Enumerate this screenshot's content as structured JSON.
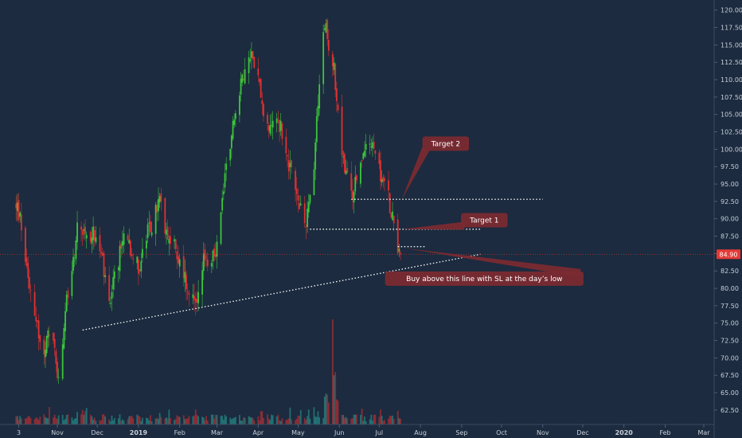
{
  "chart_data": {
    "type": "candlestick",
    "y_axis": {
      "range": [
        61,
        121
      ],
      "ticks": [
        "62.50",
        "65.00",
        "67.50",
        "70.00",
        "72.50",
        "75.00",
        "77.50",
        "80.00",
        "82.50",
        "85.00",
        "87.50",
        "90.00",
        "92.50",
        "95.00",
        "97.50",
        "100.00",
        "102.50",
        "105.00",
        "107.50",
        "110.00",
        "112.50",
        "115.00",
        "117.50",
        "120.00"
      ],
      "position": "right"
    },
    "x_axis": {
      "ticks": [
        {
          "label": "3",
          "date": "2018-10-03",
          "bold": false
        },
        {
          "label": "Nov",
          "date": "2018-11-01",
          "bold": false
        },
        {
          "label": "Dec",
          "date": "2018-12-01",
          "bold": false
        },
        {
          "label": "2019",
          "date": "2019-01-01",
          "bold": true
        },
        {
          "label": "Feb",
          "date": "2019-02-01",
          "bold": false
        },
        {
          "label": "Mar",
          "date": "2019-03-01",
          "bold": false
        },
        {
          "label": "Apr",
          "date": "2019-04-01",
          "bold": false
        },
        {
          "label": "May",
          "date": "2019-05-01",
          "bold": false
        },
        {
          "label": "Jun",
          "date": "2019-06-01",
          "bold": false
        },
        {
          "label": "Jul",
          "date": "2019-07-01",
          "bold": false
        },
        {
          "label": "Aug",
          "date": "2019-08-01",
          "bold": false
        },
        {
          "label": "Sep",
          "date": "2019-09-01",
          "bold": false
        },
        {
          "label": "Oct",
          "date": "2019-10-01",
          "bold": false
        },
        {
          "label": "Nov",
          "date": "2019-11-01",
          "bold": false
        },
        {
          "label": "Dec",
          "date": "2019-12-01",
          "bold": false
        },
        {
          "label": "2020",
          "date": "2020-01-01",
          "bold": true
        },
        {
          "label": "Feb",
          "date": "2020-02-01",
          "bold": false
        },
        {
          "label": "Mar",
          "date": "2020-03-01",
          "bold": false
        }
      ]
    },
    "last_price": {
      "label": "84.90",
      "value": 84.9
    },
    "price_path": [
      [
        "2018-10-01",
        92
      ],
      [
        "2018-10-04",
        90
      ],
      [
        "2018-10-07",
        86
      ],
      [
        "2018-10-10",
        82
      ],
      [
        "2018-10-13",
        79
      ],
      [
        "2018-10-16",
        76
      ],
      [
        "2018-10-19",
        72
      ],
      [
        "2018-10-22",
        70
      ],
      [
        "2018-10-25",
        73
      ],
      [
        "2018-10-28",
        75
      ],
      [
        "2018-10-31",
        69
      ],
      [
        "2018-11-02",
        66
      ],
      [
        "2018-11-05",
        72
      ],
      [
        "2018-11-08",
        78
      ],
      [
        "2018-11-11",
        82
      ],
      [
        "2018-11-14",
        85
      ],
      [
        "2018-11-17",
        90
      ],
      [
        "2018-11-20",
        88
      ],
      [
        "2018-11-24",
        87
      ],
      [
        "2018-11-28",
        88
      ],
      [
        "2018-12-02",
        86
      ],
      [
        "2018-12-05",
        84
      ],
      [
        "2018-12-08",
        79
      ],
      [
        "2018-12-11",
        77
      ],
      [
        "2018-12-14",
        82
      ],
      [
        "2018-12-17",
        84
      ],
      [
        "2018-12-20",
        87
      ],
      [
        "2018-12-23",
        89
      ],
      [
        "2018-12-26",
        86
      ],
      [
        "2018-12-29",
        84
      ],
      [
        "2019-01-02",
        83
      ],
      [
        "2019-01-05",
        86
      ],
      [
        "2019-01-08",
        88
      ],
      [
        "2019-01-11",
        89
      ],
      [
        "2019-01-14",
        91
      ],
      [
        "2019-01-17",
        93
      ],
      [
        "2019-01-20",
        89
      ],
      [
        "2019-01-24",
        88
      ],
      [
        "2019-01-28",
        86
      ],
      [
        "2019-02-01",
        84
      ],
      [
        "2019-02-04",
        82
      ],
      [
        "2019-02-07",
        80
      ],
      [
        "2019-02-10",
        79
      ],
      [
        "2019-02-13",
        78
      ],
      [
        "2019-02-16",
        81
      ],
      [
        "2019-02-19",
        84
      ],
      [
        "2019-02-22",
        83
      ],
      [
        "2019-02-25",
        84
      ],
      [
        "2019-03-01",
        86
      ],
      [
        "2019-03-04",
        92
      ],
      [
        "2019-03-07",
        96
      ],
      [
        "2019-03-10",
        100
      ],
      [
        "2019-03-13",
        104
      ],
      [
        "2019-03-16",
        107
      ],
      [
        "2019-03-19",
        109
      ],
      [
        "2019-03-22",
        111
      ],
      [
        "2019-03-25",
        113
      ],
      [
        "2019-03-28",
        114
      ],
      [
        "2019-03-31",
        111
      ],
      [
        "2019-04-03",
        108
      ],
      [
        "2019-04-06",
        104
      ],
      [
        "2019-04-09",
        102
      ],
      [
        "2019-04-12",
        105
      ],
      [
        "2019-04-15",
        104
      ],
      [
        "2019-04-18",
        103
      ],
      [
        "2019-04-21",
        101
      ],
      [
        "2019-04-24",
        98
      ],
      [
        "2019-04-27",
        96
      ],
      [
        "2019-04-30",
        93
      ],
      [
        "2019-05-03",
        91
      ],
      [
        "2019-05-06",
        89
      ],
      [
        "2019-05-09",
        92
      ],
      [
        "2019-05-12",
        95
      ],
      [
        "2019-05-15",
        105
      ],
      [
        "2019-05-18",
        112
      ],
      [
        "2019-05-21",
        118
      ],
      [
        "2019-05-24",
        115
      ],
      [
        "2019-05-27",
        113
      ],
      [
        "2019-05-30",
        108
      ],
      [
        "2019-06-02",
        101
      ],
      [
        "2019-06-05",
        97
      ],
      [
        "2019-06-08",
        95
      ],
      [
        "2019-06-11",
        93
      ],
      [
        "2019-06-14",
        96
      ],
      [
        "2019-06-17",
        98
      ],
      [
        "2019-06-20",
        100
      ],
      [
        "2019-06-23",
        99
      ],
      [
        "2019-06-26",
        101
      ],
      [
        "2019-06-29",
        98
      ],
      [
        "2019-07-02",
        96
      ],
      [
        "2019-07-05",
        95
      ],
      [
        "2019-07-08",
        93
      ],
      [
        "2019-07-11",
        90
      ],
      [
        "2019-07-14",
        87
      ],
      [
        "2019-07-17",
        84.9
      ]
    ],
    "volume": {
      "spike_date": "2019-05-27"
    },
    "levels": [
      {
        "name": "target-2-line",
        "y": 92.8,
        "from": "2019-06-10",
        "to": "2019-11-01"
      },
      {
        "name": "target-1-line",
        "y": 88.5,
        "from": "2019-05-10",
        "to": "2019-09-15"
      },
      {
        "name": "buy-level-line",
        "y": 86,
        "from": "2019-07-15",
        "to": "2019-08-05"
      }
    ],
    "trendline": {
      "from": [
        "2018-11-20",
        74
      ],
      "to": [
        "2019-09-15",
        84.9
      ]
    },
    "annotations": [
      {
        "name": "target-2-note",
        "text": "Target 2",
        "box": [
          "2019-08-20",
          100.8
        ],
        "pointer": [
          "2019-07-18",
          92.8
        ]
      },
      {
        "name": "target-1-note",
        "text": "Target 1",
        "box": [
          "2019-09-18",
          89.8
        ],
        "pointer": [
          "2019-07-18",
          88.5
        ]
      },
      {
        "name": "buy-note",
        "text": "Buy above this line with SL at the day’s low",
        "box": [
          "2019-09-18",
          81.4
        ],
        "pointer": [
          "2019-07-19",
          85.8
        ]
      }
    ],
    "grid": false,
    "colors": {
      "background": "#1c2b3f",
      "up": "#26a69a",
      "up_candle": "#3cc63c",
      "down": "#e03030",
      "annotation": "#7a2a30",
      "price_tag": "#e53935",
      "axis_text": "#c8ced8",
      "price_line": "#c0392b"
    }
  }
}
